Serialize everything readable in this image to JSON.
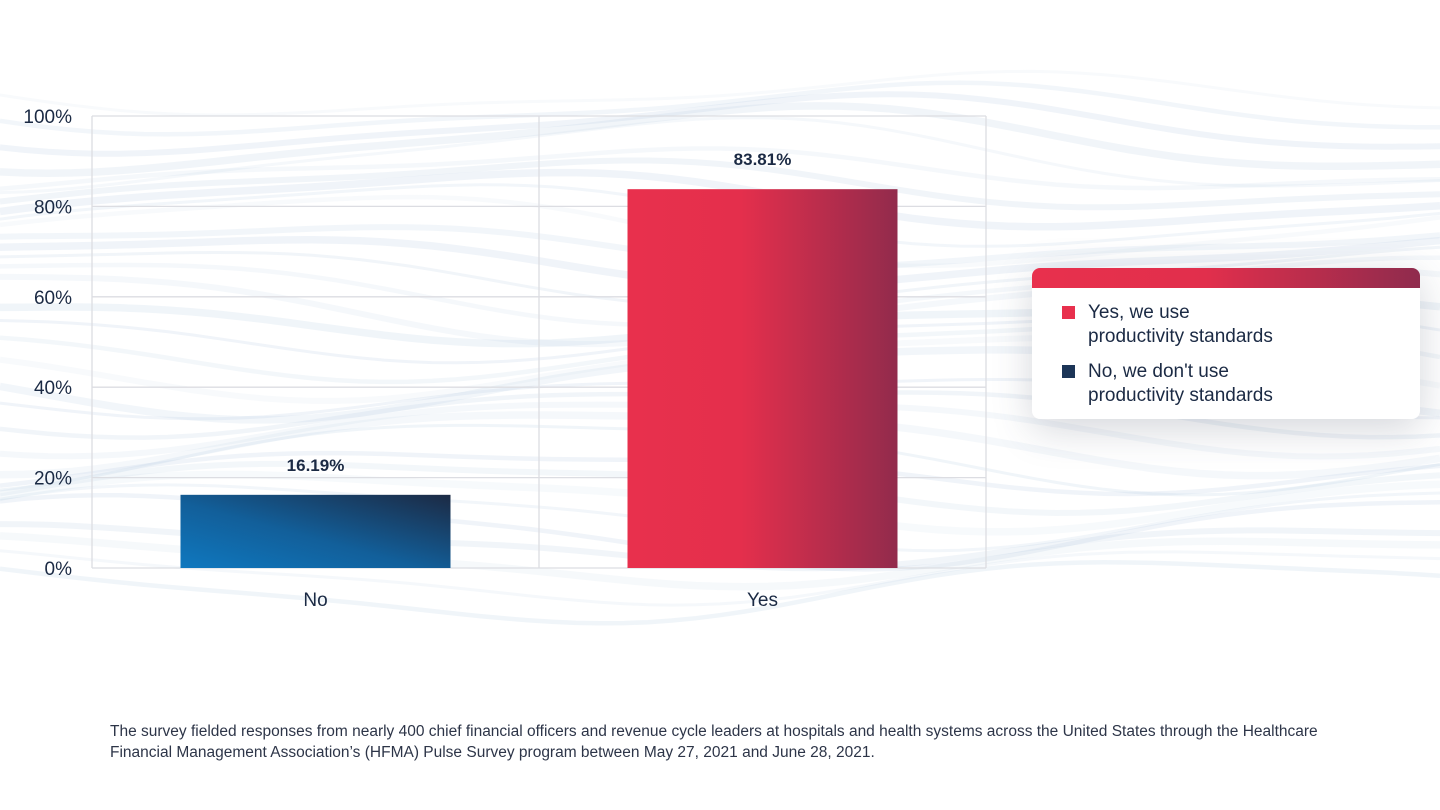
{
  "chart_data": {
    "type": "bar",
    "categories": [
      "No",
      "Yes"
    ],
    "values": [
      16.19,
      83.81
    ],
    "data_labels": [
      "16.19%",
      "83.81%"
    ],
    "series": [
      {
        "name": "No, we don't use productivity standards",
        "category": "No",
        "value": 16.19,
        "color_start": "#0f78bf",
        "color_end": "#1c2a44"
      },
      {
        "name": "Yes, we use productivity standards",
        "category": "Yes",
        "value": 83.81,
        "color_start": "#e8304d",
        "color_end": "#8f2b4d"
      }
    ],
    "y_ticks": [
      "0%",
      "20%",
      "40%",
      "60%",
      "80%",
      "100%"
    ],
    "y_tick_values": [
      0,
      20,
      40,
      60,
      80,
      100
    ],
    "ylim": [
      0,
      100
    ],
    "title": "",
    "xlabel": "",
    "ylabel": "",
    "grid": true,
    "legend_position": "right"
  },
  "legend": {
    "items": [
      {
        "label": "Yes, we use\nproductivity standards",
        "color": "#e8304d"
      },
      {
        "label": "No, we don't use\nproductivity standards",
        "color": "#1c3557"
      }
    ]
  },
  "footnote": "The survey fielded responses from nearly 400 chief financial officers and revenue cycle leaders at hospitals and health systems across the United States through the Healthcare Financial Management Association’s (HFMA) Pulse Survey program between May 27, 2021 and June 28, 2021.",
  "colors": {
    "text": "#1b2a44",
    "grid": "#dcdde2",
    "accent_red": "#e8304d",
    "accent_navy": "#1c2a44",
    "accent_blue": "#0f78bf"
  }
}
